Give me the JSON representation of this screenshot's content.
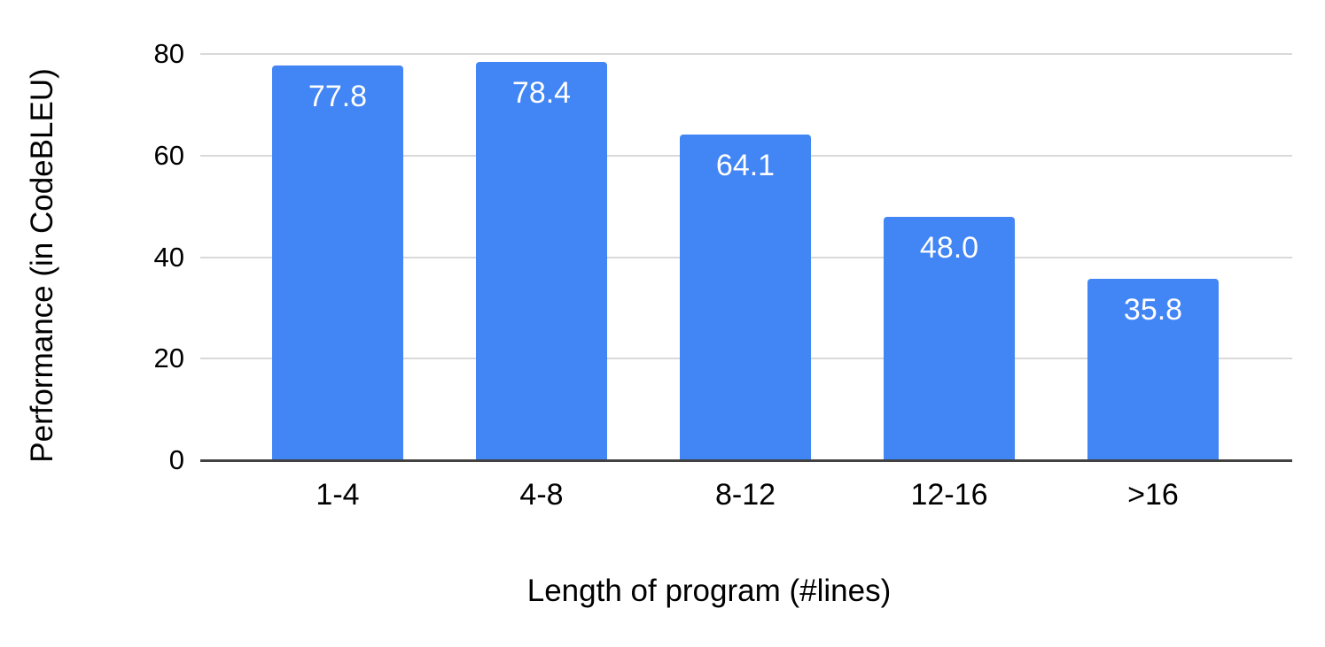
{
  "chart_data": {
    "type": "bar",
    "title": "",
    "categories": [
      "1-4",
      "4-8",
      "8-12",
      "12-16",
      ">16"
    ],
    "values": [
      77.8,
      78.4,
      64.1,
      48.0,
      35.8
    ],
    "value_labels": [
      "77.8",
      "78.4",
      "64.1",
      "48.0",
      "35.8"
    ],
    "xlabel": "Length of program (#lines)",
    "ylabel": "Performance (in CodeBLEU)",
    "ylim": [
      0,
      80
    ],
    "yticks": [
      0,
      20,
      40,
      60,
      80
    ],
    "ytick_labels": [
      "0",
      "20",
      "40",
      "60",
      "80"
    ],
    "grid": true,
    "legend": "none",
    "colors": {
      "bar": "#4285f4",
      "bar_value_label": "#ffffff",
      "gridline": "#d9d9d9",
      "axis_baseline": "#424242",
      "text": "#000000",
      "background": "#ffffff"
    }
  }
}
